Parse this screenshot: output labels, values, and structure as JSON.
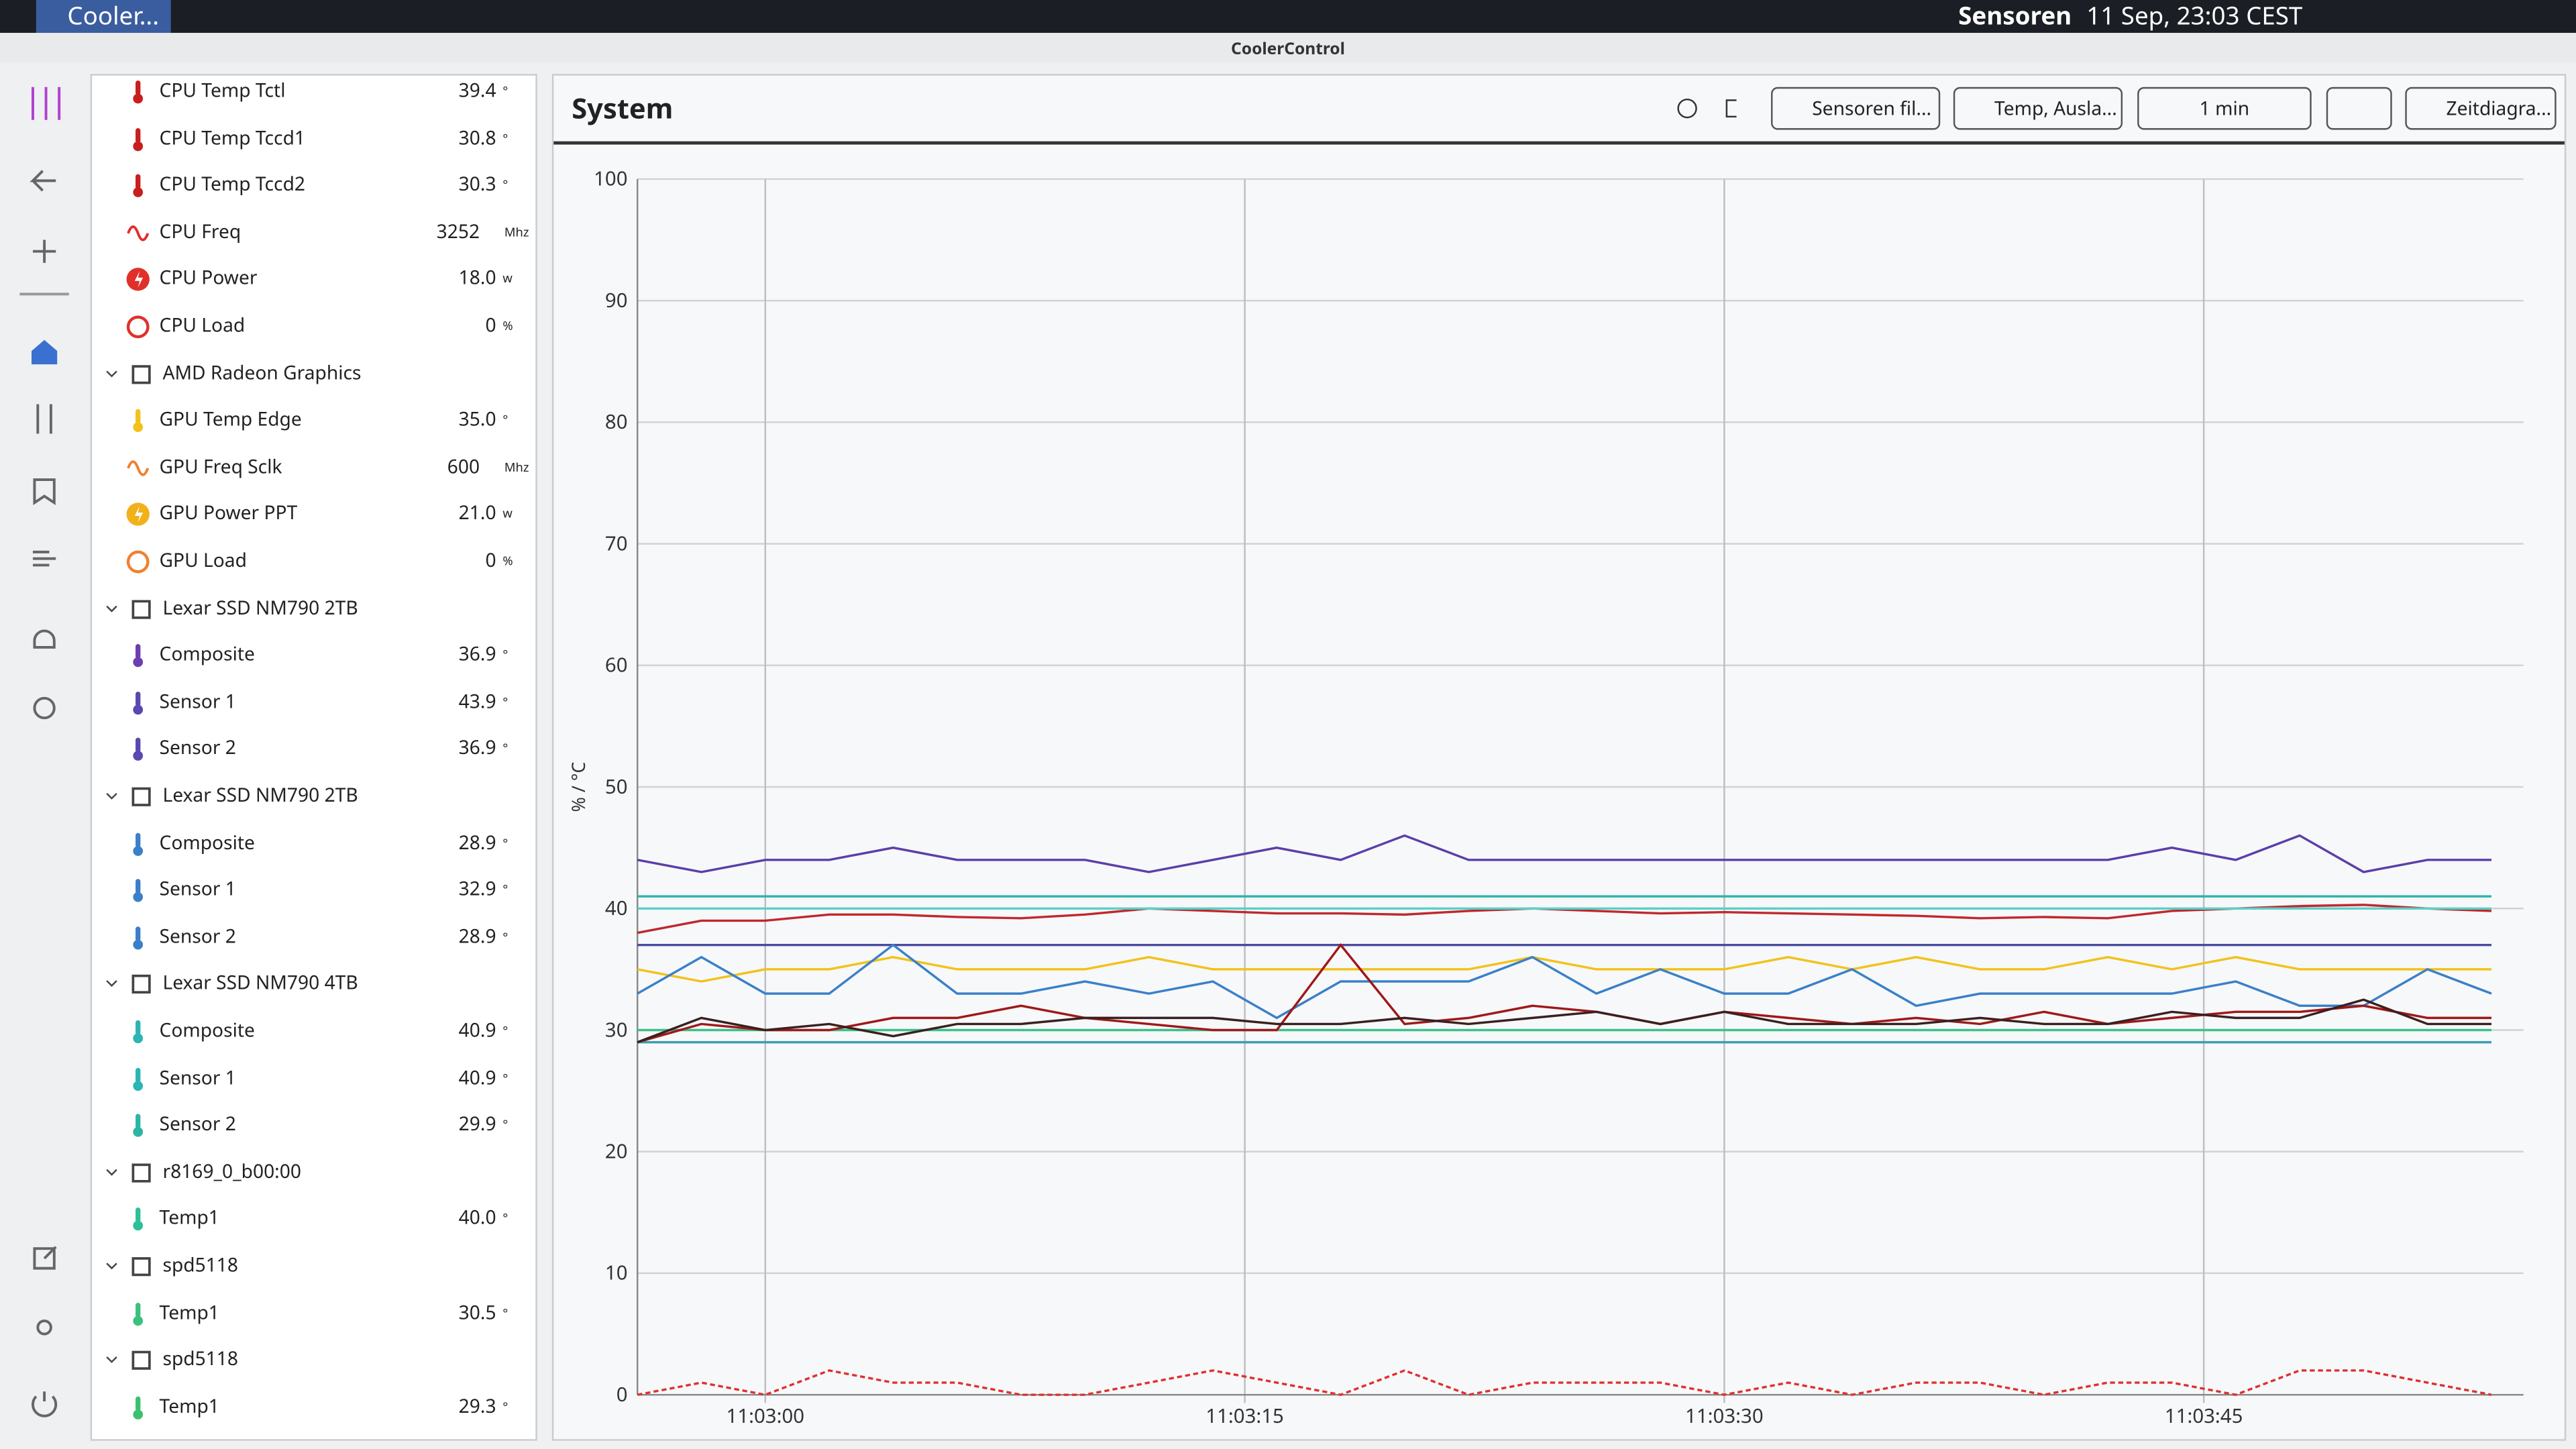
{
  "taskbar": {
    "app": "Cooler...",
    "window": "Sensoren",
    "clock": "11 Sep, 23:03 CEST"
  },
  "window_title": "CoolerControl",
  "sidebar": {
    "items": [
      {
        "kind": "sensor",
        "icon": "thermo",
        "color": "#c81e1e",
        "name": "CPU Temp Tctl",
        "value": "39.4",
        "unit": "°"
      },
      {
        "kind": "sensor",
        "icon": "thermo",
        "color": "#c81e1e",
        "name": "CPU Temp Tccd1",
        "value": "30.8",
        "unit": "°"
      },
      {
        "kind": "sensor",
        "icon": "thermo",
        "color": "#c81e1e",
        "name": "CPU Temp Tccd2",
        "value": "30.3",
        "unit": "°"
      },
      {
        "kind": "sensor",
        "icon": "wave",
        "color": "#e0302a",
        "name": "CPU Freq",
        "value": "3252",
        "unit": "Mhz"
      },
      {
        "kind": "sensor",
        "icon": "bolt",
        "color": "#e0302a",
        "name": "CPU Power",
        "value": "18.0",
        "unit": "w"
      },
      {
        "kind": "sensor",
        "icon": "gauge",
        "color": "#e0302a",
        "name": "CPU Load",
        "value": "0",
        "unit": "%"
      },
      {
        "kind": "device",
        "name": "AMD Radeon Graphics"
      },
      {
        "kind": "sensor",
        "icon": "thermo",
        "color": "#f2c21b",
        "name": "GPU Temp Edge",
        "value": "35.0",
        "unit": "°"
      },
      {
        "kind": "sensor",
        "icon": "wave",
        "color": "#f08030",
        "name": "GPU Freq Sclk",
        "value": "600",
        "unit": "Mhz"
      },
      {
        "kind": "sensor",
        "icon": "bolt",
        "color": "#f2b01b",
        "name": "GPU Power PPT",
        "value": "21.0",
        "unit": "w"
      },
      {
        "kind": "sensor",
        "icon": "gauge",
        "color": "#f08030",
        "name": "GPU Load",
        "value": "0",
        "unit": "%"
      },
      {
        "kind": "device",
        "name": "Lexar SSD NM790 2TB"
      },
      {
        "kind": "sensor",
        "icon": "thermo",
        "color": "#6a3fb0",
        "name": "Composite",
        "value": "36.9",
        "unit": "°"
      },
      {
        "kind": "sensor",
        "icon": "thermo",
        "color": "#5a48b0",
        "name": "Sensor 1",
        "value": "43.9",
        "unit": "°"
      },
      {
        "kind": "sensor",
        "icon": "thermo",
        "color": "#5a48b0",
        "name": "Sensor 2",
        "value": "36.9",
        "unit": "°"
      },
      {
        "kind": "device",
        "name": "Lexar SSD NM790 2TB"
      },
      {
        "kind": "sensor",
        "icon": "thermo",
        "color": "#3a80c8",
        "name": "Composite",
        "value": "28.9",
        "unit": "°"
      },
      {
        "kind": "sensor",
        "icon": "thermo",
        "color": "#3a80c8",
        "name": "Sensor 1",
        "value": "32.9",
        "unit": "°"
      },
      {
        "kind": "sensor",
        "icon": "thermo",
        "color": "#3a80c8",
        "name": "Sensor 2",
        "value": "28.9",
        "unit": "°"
      },
      {
        "kind": "device",
        "name": "Lexar SSD NM790 4TB"
      },
      {
        "kind": "sensor",
        "icon": "thermo",
        "color": "#2bb5b5",
        "name": "Composite",
        "value": "40.9",
        "unit": "°"
      },
      {
        "kind": "sensor",
        "icon": "thermo",
        "color": "#2bb5b5",
        "name": "Sensor 1",
        "value": "40.9",
        "unit": "°"
      },
      {
        "kind": "sensor",
        "icon": "thermo",
        "color": "#2bb5a5",
        "name": "Sensor 2",
        "value": "29.9",
        "unit": "°"
      },
      {
        "kind": "device",
        "name": "r8169_0_b00:00"
      },
      {
        "kind": "sensor",
        "icon": "thermo",
        "color": "#2cc09a",
        "name": "Temp1",
        "value": "40.0",
        "unit": "°"
      },
      {
        "kind": "device",
        "name": "spd5118"
      },
      {
        "kind": "sensor",
        "icon": "thermo",
        "color": "#3cc080",
        "name": "Temp1",
        "value": "30.5",
        "unit": "°"
      },
      {
        "kind": "device",
        "name": "spd5118"
      },
      {
        "kind": "sensor",
        "icon": "thermo",
        "color": "#3cc070",
        "name": "Temp1",
        "value": "29.3",
        "unit": "°"
      }
    ]
  },
  "header": {
    "title": "System",
    "buttons": [
      "Sensoren fil...",
      "Temp, Ausla...",
      "1 min",
      "Zeitdiagra..."
    ]
  },
  "chart_data": {
    "type": "line",
    "y_label": "% / °C",
    "grid": true,
    "x": [
      "11:02:56",
      "11:02:58",
      "11:03:00",
      "11:03:02",
      "11:03:04",
      "11:03:06",
      "11:03:08",
      "11:03:10",
      "11:03:12",
      "11:03:14",
      "11:03:16",
      "11:03:18",
      "11:03:20",
      "11:03:22",
      "11:03:24",
      "11:03:26",
      "11:03:28",
      "11:03:30",
      "11:03:32",
      "11:03:34",
      "11:03:36",
      "11:03:38",
      "11:03:40",
      "11:03:42",
      "11:03:44",
      "11:03:46",
      "11:03:48",
      "11:03:50",
      "11:03:52",
      "11:03:54"
    ],
    "xlim": [
      "11:02:56",
      "11:03:55"
    ],
    "xticks": [
      "11:03:00",
      "11:03:15",
      "11:03:30",
      "11:03:45"
    ],
    "ylim": [
      0,
      100
    ],
    "yticks": [
      0,
      10,
      20,
      30,
      40,
      50,
      60,
      70,
      80,
      90,
      100
    ],
    "series": [
      {
        "color": "#5b3fa8",
        "values": [
          44,
          43,
          44,
          44,
          45,
          44,
          44,
          44,
          43,
          44,
          45,
          44,
          46,
          44,
          44,
          44,
          44,
          44,
          44,
          44,
          44,
          44,
          44,
          44,
          45,
          44,
          46,
          43,
          44,
          44
        ]
      },
      {
        "color": "#c0282d",
        "values": [
          38,
          39,
          39,
          39.5,
          39.5,
          39.3,
          39.2,
          39.5,
          40,
          39.8,
          39.6,
          39.6,
          39.5,
          39.8,
          40,
          39.8,
          39.6,
          39.7,
          39.6,
          39.5,
          39.4,
          39.2,
          39.3,
          39.2,
          39.8,
          40,
          40.2,
          40.3,
          40,
          39.8
        ]
      },
      {
        "color": "#2bb5a5",
        "values": [
          41,
          41,
          41,
          41,
          41,
          41,
          41,
          41,
          41,
          41,
          41,
          41,
          41,
          41,
          41,
          41,
          41,
          41,
          41,
          41,
          41,
          41,
          41,
          41,
          41,
          41,
          41,
          41,
          41,
          41
        ]
      },
      {
        "color": "#5ad0c8",
        "values": [
          40,
          40,
          40,
          40,
          40,
          40,
          40,
          40,
          40,
          40,
          40,
          40,
          40,
          40,
          40,
          40,
          40,
          40,
          40,
          40,
          40,
          40,
          40,
          40,
          40,
          40,
          40,
          40,
          40,
          40
        ]
      },
      {
        "color": "#4a4aa0",
        "values": [
          37,
          37,
          37,
          37,
          37,
          37,
          37,
          37,
          37,
          37,
          37,
          37,
          37,
          37,
          37,
          37,
          37,
          37,
          37,
          37,
          37,
          37,
          37,
          37,
          37,
          37,
          37,
          37,
          37,
          37
        ]
      },
      {
        "color": "#f2c21b",
        "values": [
          35,
          34,
          35,
          35,
          36,
          35,
          35,
          35,
          36,
          35,
          35,
          35,
          35,
          35,
          36,
          35,
          35,
          35,
          36,
          35,
          36,
          35,
          35,
          36,
          35,
          36,
          35,
          35,
          35,
          35
        ]
      },
      {
        "color": "#3a80c8",
        "values": [
          33,
          36,
          33,
          33,
          37,
          33,
          33,
          34,
          33,
          34,
          31,
          34,
          34,
          34,
          36,
          33,
          35,
          33,
          33,
          35,
          32,
          33,
          33,
          33,
          33,
          34,
          32,
          32,
          35,
          33
        ]
      },
      {
        "color": "#3cc08a",
        "values": [
          30,
          30,
          30,
          30,
          30,
          30,
          30,
          30,
          30,
          30,
          30,
          30,
          30,
          30,
          30,
          30,
          30,
          30,
          30,
          30,
          30,
          30,
          30,
          30,
          30,
          30,
          30,
          30,
          30,
          30
        ]
      },
      {
        "color": "#3aa0b0",
        "values": [
          29,
          29,
          29,
          29,
          29,
          29,
          29,
          29,
          29,
          29,
          29,
          29,
          29,
          29,
          29,
          29,
          29,
          29,
          29,
          29,
          29,
          29,
          29,
          29,
          29,
          29,
          29,
          29,
          29,
          29
        ]
      },
      {
        "color": "#a01818",
        "values": [
          29,
          30.5,
          30,
          30,
          31,
          31,
          32,
          31,
          30.5,
          30,
          30,
          37,
          30.5,
          31,
          32,
          31.5,
          30.5,
          31.5,
          31,
          30.5,
          31,
          30.5,
          31.5,
          30.5,
          31,
          31.5,
          31.5,
          32,
          31,
          31
        ]
      },
      {
        "color": "#3a2020",
        "values": [
          29,
          31,
          30,
          30.5,
          29.5,
          30.5,
          30.5,
          31,
          31,
          31,
          30.5,
          30.5,
          31,
          30.5,
          31,
          31.5,
          30.5,
          31.5,
          30.5,
          30.5,
          30.5,
          31,
          30.5,
          30.5,
          31.5,
          31,
          31,
          32.5,
          30.5,
          30.5
        ]
      },
      {
        "color": "#e03030",
        "dashed": true,
        "values": [
          0,
          1,
          0,
          2,
          1,
          1,
          0,
          0,
          1,
          2,
          1,
          0,
          2,
          0,
          1,
          1,
          1,
          0,
          1,
          0,
          1,
          1,
          0,
          1,
          1,
          0,
          2,
          2,
          1,
          0
        ]
      }
    ]
  }
}
